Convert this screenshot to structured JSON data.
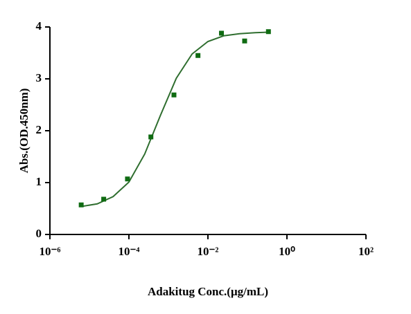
{
  "chart_data": {
    "type": "scatter",
    "xlabel": "Adakitug Conc.(μg/mL)",
    "ylabel": "Abs.(OD.450nm)",
    "xscale": "log",
    "xlim": [
      1e-06,
      100
    ],
    "ylim": [
      0,
      4
    ],
    "xticks": [
      {
        "value": 1e-06,
        "label": "10⁻⁶"
      },
      {
        "value": 0.0001,
        "label": "10⁻⁴"
      },
      {
        "value": 0.01,
        "label": "10⁻²"
      },
      {
        "value": 1,
        "label": "10⁰"
      },
      {
        "value": 100,
        "label": "10²"
      }
    ],
    "yticks": [
      0,
      1,
      2,
      3,
      4
    ],
    "grid": false,
    "series": [
      {
        "mode": "markers",
        "color": "#0f6b12",
        "x": [
          6.2e-06,
          2.3e-05,
          9.2e-05,
          0.00036,
          0.00138,
          0.0056,
          0.022,
          0.085,
          0.34
        ],
        "values": [
          0.57,
          0.68,
          1.07,
          1.88,
          2.69,
          3.45,
          3.88,
          3.73,
          3.91
        ]
      },
      {
        "mode": "line",
        "color": "#2f6e2f",
        "x": [
          6.31e-06,
          1.58e-05,
          3.98e-05,
          0.0001,
          0.000251,
          0.000631,
          0.00158,
          0.00398,
          0.01,
          0.0251,
          0.0631,
          0.158,
          0.339
        ],
        "values": [
          0.54,
          0.59,
          0.73,
          1.01,
          1.55,
          2.3,
          3.01,
          3.48,
          3.72,
          3.83,
          3.87,
          3.89,
          3.9
        ]
      }
    ]
  }
}
